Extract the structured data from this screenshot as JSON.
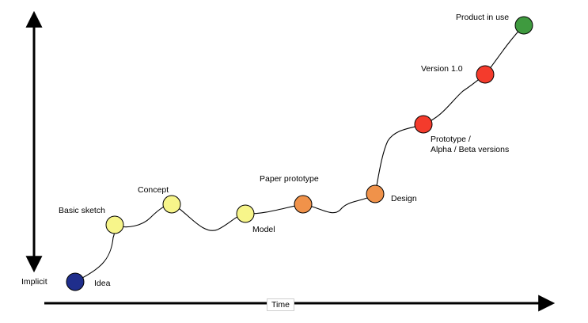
{
  "axes": {
    "y_label": "Implicit",
    "x_label": "Time"
  },
  "stages": [
    {
      "id": "idea",
      "label": "Idea",
      "color": "#1f2e8c"
    },
    {
      "id": "basic-sketch",
      "label": "Basic sketch",
      "color": "#f7f58a"
    },
    {
      "id": "concept",
      "label": "Concept",
      "color": "#f7f58a"
    },
    {
      "id": "model",
      "label": "Model",
      "color": "#f7f58a"
    },
    {
      "id": "paper-prototype",
      "label": "Paper prototype",
      "color": "#f0924a"
    },
    {
      "id": "design",
      "label": "Design",
      "color": "#f0924a"
    },
    {
      "id": "prototype",
      "label_line1": "Prototype /",
      "label_line2": "Alpha / Beta versions",
      "color": "#f43b2c"
    },
    {
      "id": "version",
      "label": "Version 1.0",
      "color": "#f43b2c"
    },
    {
      "id": "product",
      "label": "Product in use",
      "color": "#3f9a3f"
    }
  ]
}
